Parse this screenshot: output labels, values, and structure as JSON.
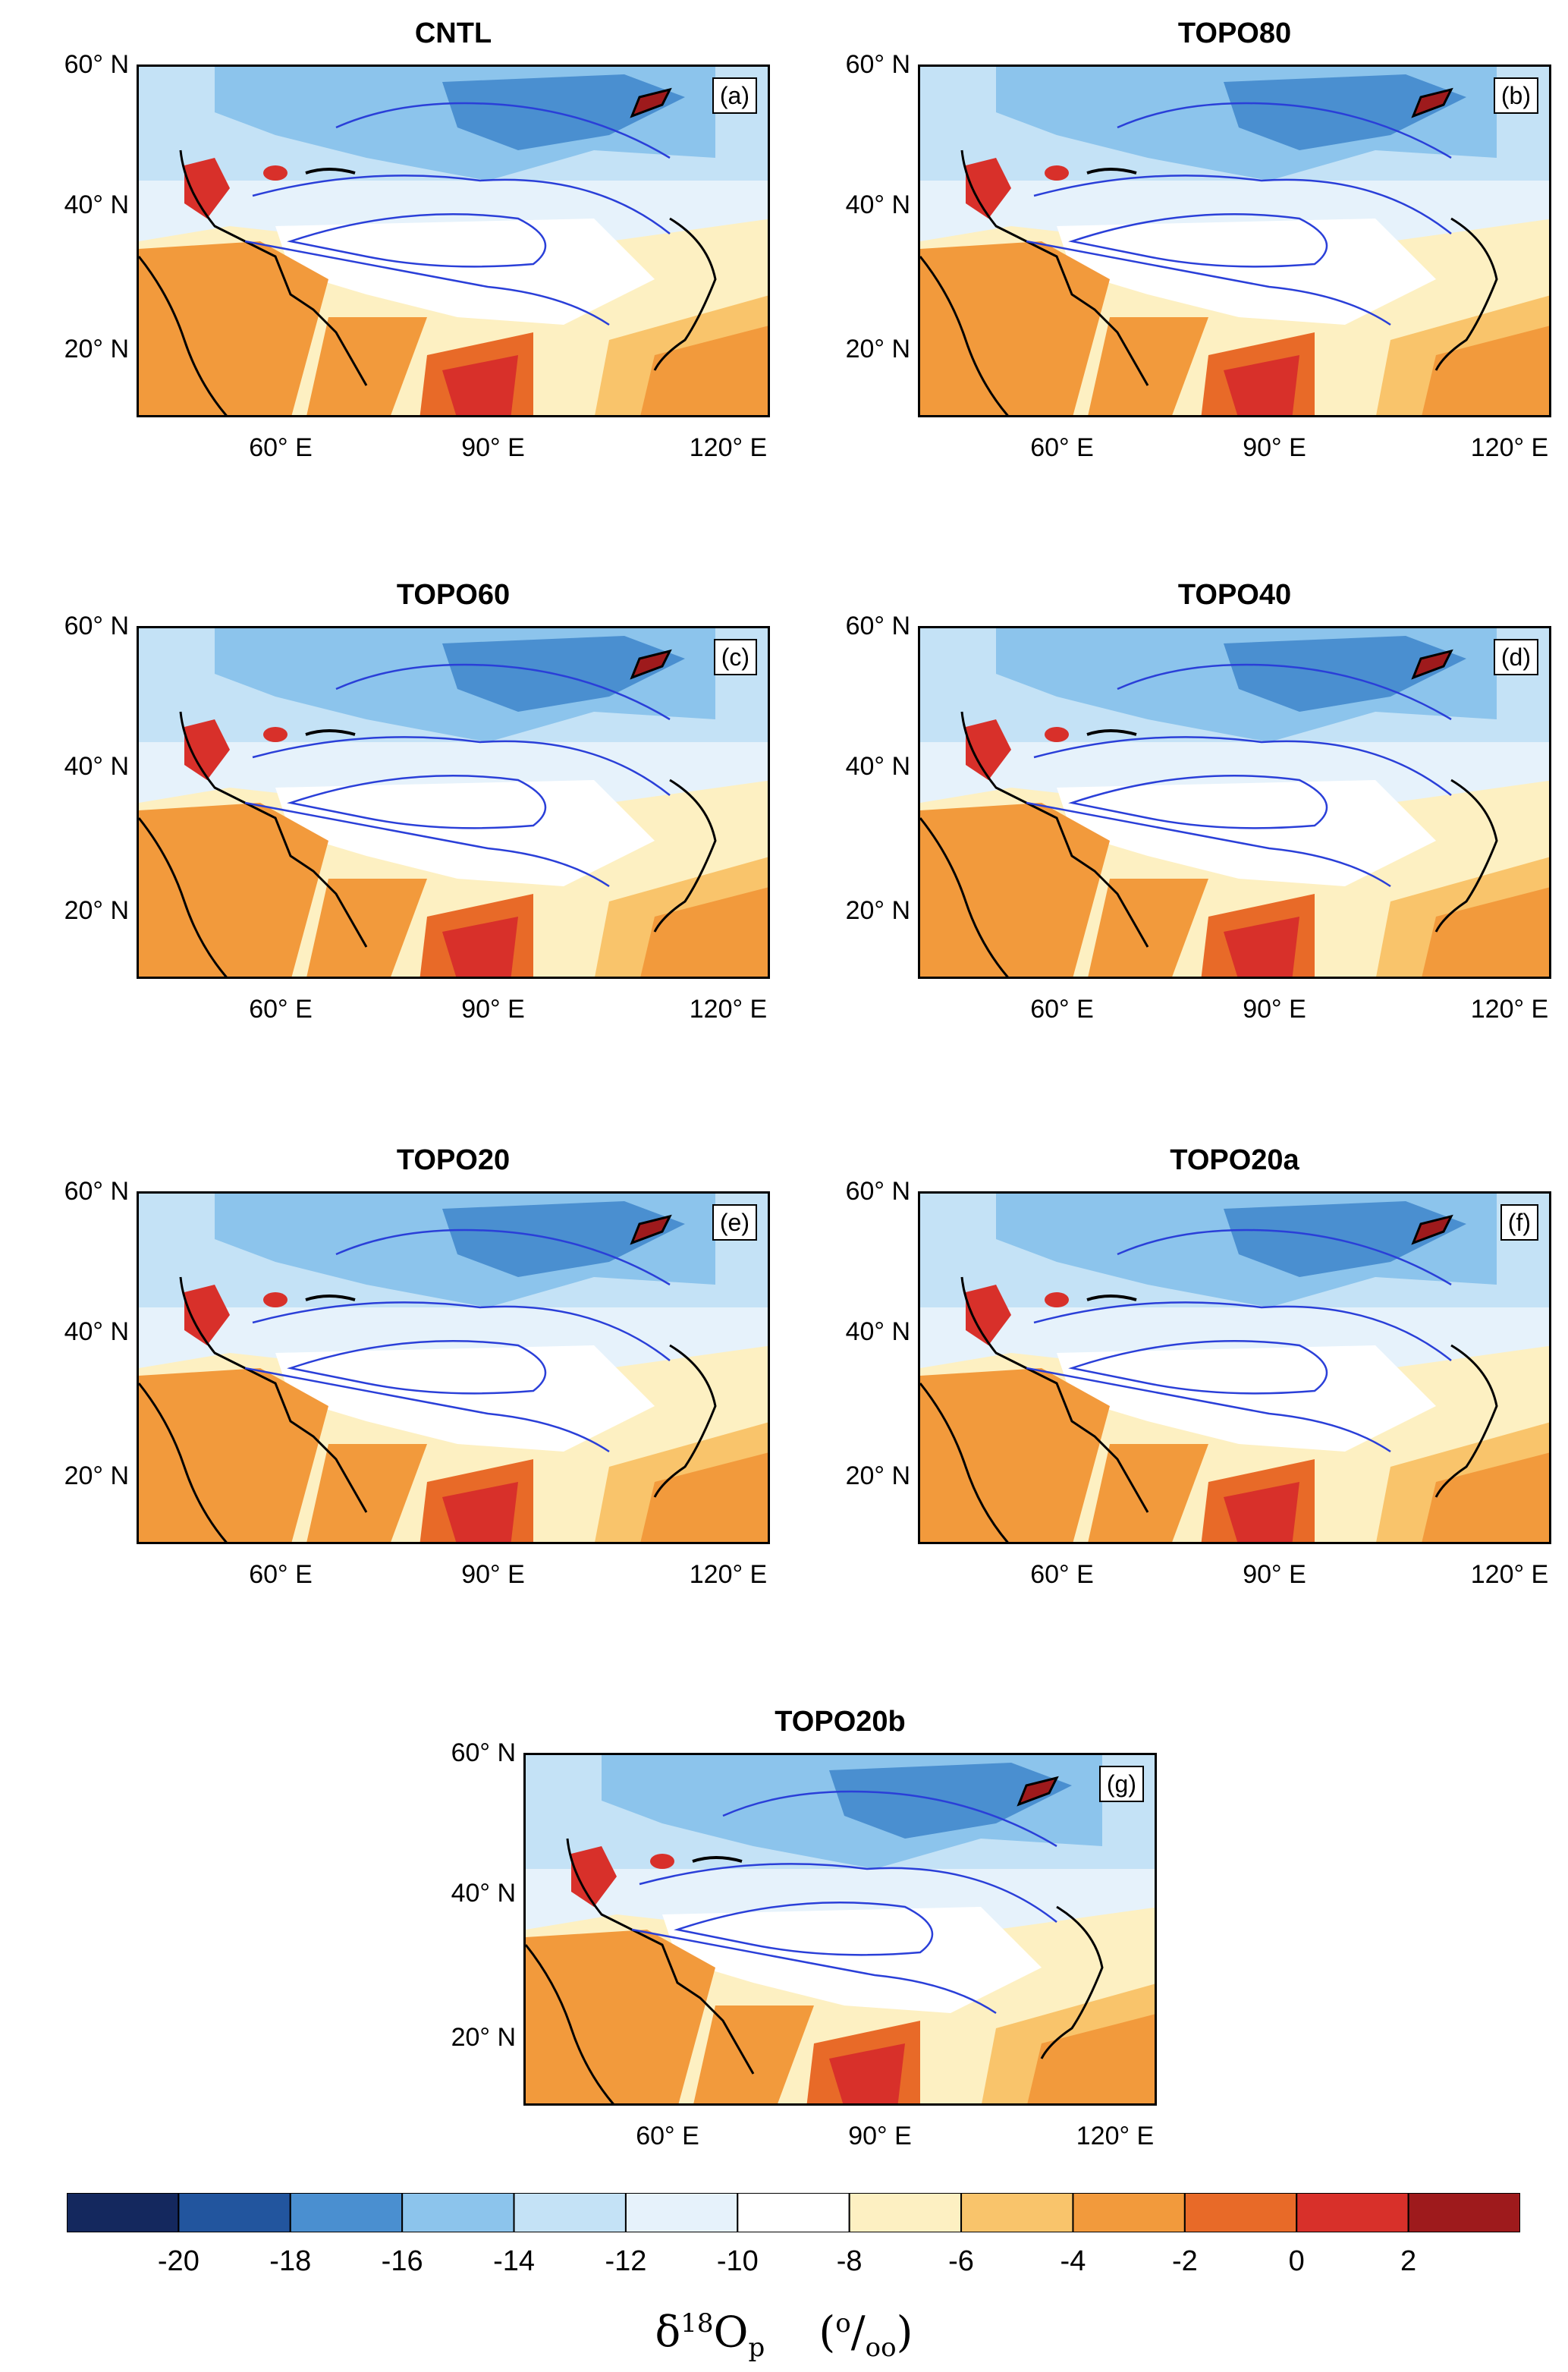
{
  "panels": [
    {
      "title": "CNTL",
      "label": "(a)"
    },
    {
      "title": "TOPO80",
      "label": "(b)"
    },
    {
      "title": "TOPO60",
      "label": "(c)"
    },
    {
      "title": "TOPO40",
      "label": "(d)"
    },
    {
      "title": "TOPO20",
      "label": "(e)"
    },
    {
      "title": "TOPO20a",
      "label": "(f)"
    },
    {
      "title": "TOPO20b",
      "label": "(g)"
    }
  ],
  "axes": {
    "lat_ticks": [
      "60° N",
      "40° N",
      "20° N"
    ],
    "lon_ticks": [
      "60° E",
      "90° E",
      "120° E"
    ]
  },
  "colorbar": {
    "colors": [
      "#14285e",
      "#22559e",
      "#4a8fd0",
      "#8cc4ec",
      "#c4e2f6",
      "#e6f2fb",
      "#ffffff",
      "#fdf0c2",
      "#f9c46b",
      "#f29a3c",
      "#e86a28",
      "#d8302a",
      "#9e1a1c"
    ],
    "tick_labels": [
      "-20",
      "-18",
      "-16",
      "-14",
      "-12",
      "-10",
      "-8",
      "-6",
      "-4",
      "-2",
      "0",
      "2"
    ],
    "label_main": "δ",
    "label_sup": "18",
    "label_O": "O",
    "label_sub": "p",
    "label_unit_open": "(",
    "label_unit_sup": "o",
    "label_unit_slash": "/",
    "label_unit_sub": "oo",
    "label_unit_close": ")"
  }
}
